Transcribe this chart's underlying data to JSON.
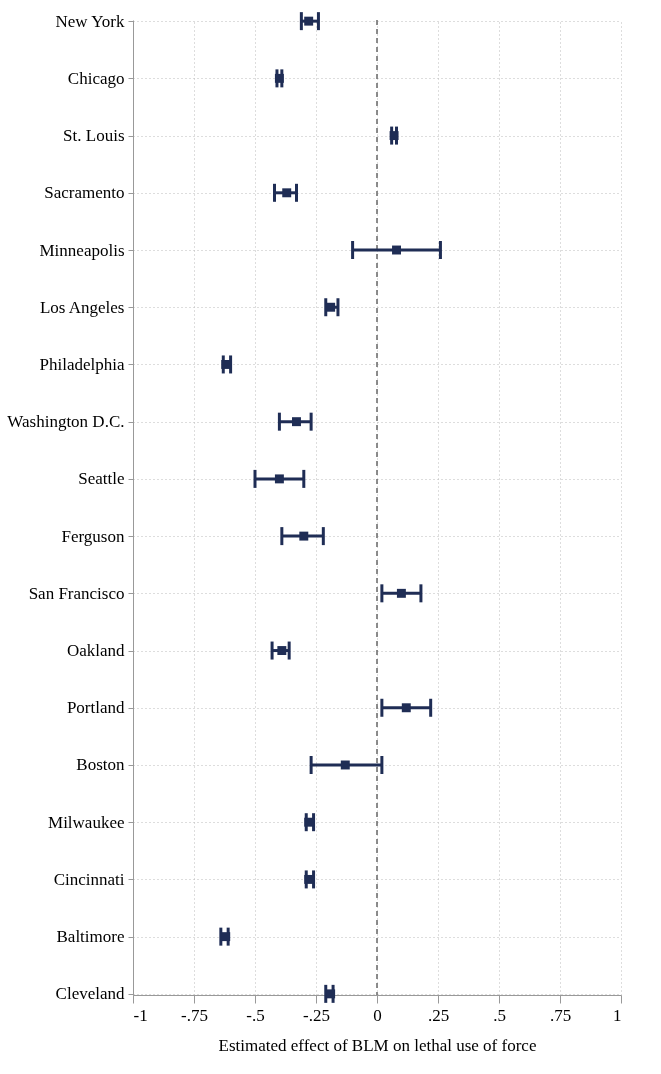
{
  "chart_data": {
    "type": "scatter",
    "orientation": "horizontal",
    "xlabel": "Estimated effect of BLM on lethal use of force",
    "categories": [
      "New York",
      "Chicago",
      "St. Louis",
      "Sacramento",
      "Minneapolis",
      "Los Angeles",
      "Philadelphia",
      "Washington D.C.",
      "Seattle",
      "Ferguson",
      "San Francisco",
      "Oakland",
      "Portland",
      "Boston",
      "Milwaukee",
      "Cincinnati",
      "Baltimore",
      "Cleveland"
    ],
    "values": [
      -0.28,
      -0.4,
      0.07,
      -0.37,
      0.08,
      -0.19,
      -0.62,
      -0.33,
      -0.4,
      -0.3,
      0.1,
      -0.39,
      0.12,
      -0.13,
      -0.28,
      -0.28,
      -0.62,
      -0.19
    ],
    "errors": [
      [
        -0.31,
        -0.24
      ],
      [
        -0.41,
        -0.39
      ],
      [
        0.06,
        0.08
      ],
      [
        -0.42,
        -0.33
      ],
      [
        -0.1,
        0.26
      ],
      [
        -0.21,
        -0.16
      ],
      [
        -0.63,
        -0.6
      ],
      [
        -0.4,
        -0.27
      ],
      [
        -0.5,
        -0.3
      ],
      [
        -0.39,
        -0.22
      ],
      [
        0.02,
        0.18
      ],
      [
        -0.43,
        -0.36
      ],
      [
        0.02,
        0.22
      ],
      [
        -0.27,
        0.02
      ],
      [
        -0.29,
        -0.26
      ],
      [
        -0.29,
        -0.26
      ],
      [
        -0.64,
        -0.61
      ],
      [
        -0.21,
        -0.18
      ]
    ],
    "color": "#1f2d55",
    "marker": "square",
    "grid": true,
    "xlim": [
      -1,
      1
    ],
    "xticks": [
      -1,
      {
        "value": -0.75,
        "label": "-.75"
      },
      {
        "value": -0.5,
        "label": "-.5"
      },
      {
        "value": -0.25,
        "label": "-.25"
      },
      0,
      {
        "value": 0.25,
        "label": ".25"
      },
      {
        "value": 0.5,
        "label": ".5"
      },
      {
        "value": 0.75,
        "label": ".75"
      },
      1
    ],
    "ref_lines": [
      {
        "axis": "x",
        "value": 0,
        "color": "#707070",
        "line_style": "dashed"
      }
    ]
  }
}
